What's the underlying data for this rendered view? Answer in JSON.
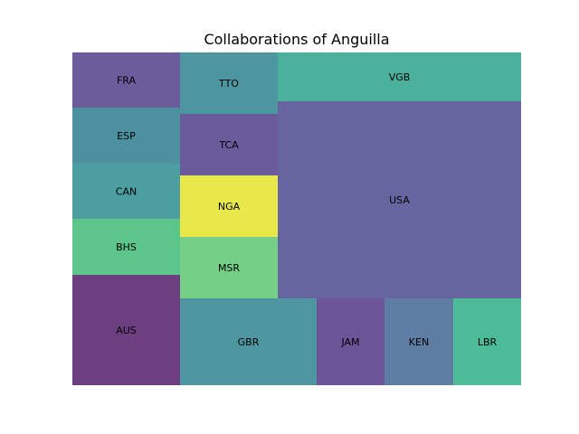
{
  "chart_data": {
    "type": "treemap",
    "title": "Collaborations of Anguilla",
    "cells": [
      {
        "label": "AUS",
        "value": 18,
        "color": "#6d3e80"
      },
      {
        "label": "BHS",
        "value": 9,
        "color": "#5cc58c"
      },
      {
        "label": "CAN",
        "value": 9,
        "color": "#4c9ea0"
      },
      {
        "label": "ESP",
        "value": 9,
        "color": "#4d90a0"
      },
      {
        "label": "FRA",
        "value": 9,
        "color": "#6c5c9c"
      },
      {
        "label": "TTO",
        "value": 9,
        "color": "#4d96a0"
      },
      {
        "label": "TCA",
        "value": 9,
        "color": "#6a5c9c"
      },
      {
        "label": "NGA",
        "value": 9,
        "color": "#e8e84a"
      },
      {
        "label": "MSR",
        "value": 9,
        "color": "#75cf86"
      },
      {
        "label": "GBR",
        "value": 18,
        "color": "#4e96a0"
      },
      {
        "label": "JAM",
        "value": 9,
        "color": "#6c5599"
      },
      {
        "label": "KEN",
        "value": 9,
        "color": "#5d7ea2"
      },
      {
        "label": "LBR",
        "value": 9,
        "color": "#4dbb98"
      },
      {
        "label": "USA",
        "value": 72,
        "color": "#67659f"
      },
      {
        "label": "VGB",
        "value": 18,
        "color": "#4bb09c"
      }
    ]
  }
}
